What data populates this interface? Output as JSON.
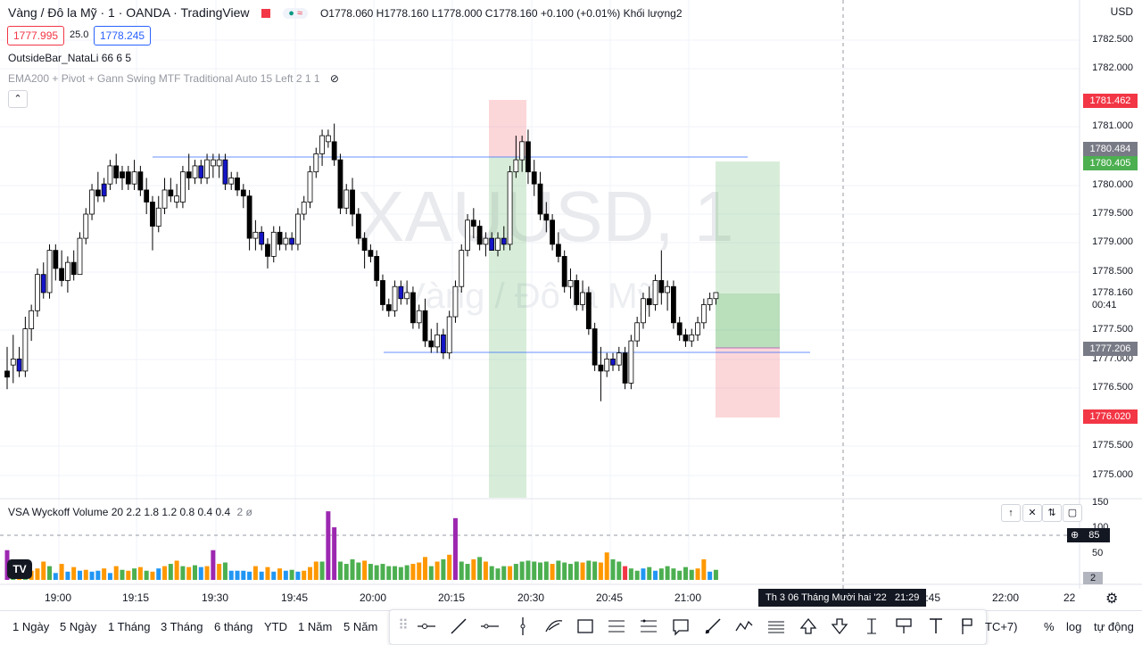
{
  "header": {
    "symbol_title": "Vàng / Đô la Mỹ · 1 · OANDA · TradingView",
    "ohlc": "O1778.060 H1778.160 L1778.000 C1778.160 +0.100 (+0.01%) Khối lượng2",
    "sell_price": "1777.995",
    "spread": "25.0",
    "buy_price": "1778.245",
    "currency": "USD"
  },
  "indicators": {
    "outside_bar": "OutsideBar_NataLi 66 6 5",
    "ema_pivot": "EMA200 + Pivot + Gann Swing MTF Traditional Auto 15 Left 2 1 1",
    "vsa": "VSA Wyckoff Volume 20 2.2 1.8 1.2 0.8 0.4 0.4",
    "vsa_extra": "2 ø"
  },
  "watermark": {
    "symbol": "XAUUSD, 1",
    "name": "Vàng / Đô la Mỹ"
  },
  "price_axis": {
    "ticks": [
      "1782.500",
      "1782.000",
      "1781.000",
      "1780.000",
      "1779.500",
      "1779.000",
      "1778.500",
      "1777.500",
      "1777.000",
      "1776.500",
      "1775.500",
      "1775.000"
    ],
    "tag_red_top": "1781.462",
    "tag_grey_top": "1780.484",
    "tag_green": "1780.405",
    "last_price": "1778.160",
    "countdown": "00:41",
    "tag_grey_low": "1777.206",
    "tag_red_low": "1776.020"
  },
  "volume_axis": {
    "ticks": [
      "150",
      "100",
      "50"
    ],
    "badge_85": "85",
    "badge_2": "2"
  },
  "time_axis": {
    "labels": [
      "19:00",
      "19:15",
      "19:30",
      "19:45",
      "20:00",
      "20:15",
      "20:30",
      "20:45",
      "21:00",
      "21:45",
      "22:00",
      "22"
    ],
    "crosshair_time": "Th 3 06 Tháng Mười hai '22   21:29"
  },
  "toolbar": {
    "ranges": [
      "1 Ngày",
      "5 Ngày",
      "1 Tháng",
      "3 Tháng",
      "6 tháng",
      "YTD",
      "1 Năm",
      "5 Năm"
    ],
    "timezone": "TC+7)",
    "percent": "%",
    "log": "log",
    "auto": "tự động"
  },
  "colors": {
    "up": "#ffffff",
    "down": "#000000",
    "down_blue": "#1515c8",
    "green_zone": "rgba(76,175,80,0.22)",
    "red_zone": "rgba(242,54,69,0.2)",
    "vol_green": "#4caf50",
    "vol_orange": "#ff9800",
    "vol_blue": "#2196f3",
    "vol_purple": "#9c27b0",
    "vol_red": "#f23645"
  },
  "chart_data": {
    "type": "candlestick",
    "xlabel_ticks": [
      "19:00",
      "19:15",
      "19:30",
      "19:45",
      "20:00",
      "20:15",
      "20:30",
      "20:45",
      "21:00"
    ],
    "ylim": [
      1774.8,
      1782.9
    ],
    "candles": [
      [
        1776.9,
        1777.3,
        1776.6,
        1776.8,
        "d"
      ],
      [
        1777.0,
        1777.5,
        1776.7,
        1777.1,
        "u"
      ],
      [
        1777.1,
        1777.3,
        1776.8,
        1776.9,
        "b"
      ],
      [
        1776.9,
        1777.8,
        1776.8,
        1777.6,
        "u"
      ],
      [
        1777.6,
        1778.0,
        1777.4,
        1777.9,
        "u"
      ],
      [
        1777.9,
        1778.6,
        1777.8,
        1778.5,
        "u"
      ],
      [
        1778.5,
        1778.7,
        1778.1,
        1778.2,
        "b"
      ],
      [
        1778.2,
        1779.0,
        1778.1,
        1778.9,
        "u"
      ],
      [
        1778.9,
        1779.0,
        1778.4,
        1778.6,
        "d"
      ],
      [
        1778.6,
        1778.9,
        1778.3,
        1778.4,
        "d"
      ],
      [
        1778.4,
        1778.8,
        1778.2,
        1778.7,
        "u"
      ],
      [
        1778.7,
        1778.9,
        1778.4,
        1778.5,
        "d"
      ],
      [
        1778.5,
        1779.2,
        1778.5,
        1779.1,
        "u"
      ],
      [
        1779.1,
        1779.6,
        1779.0,
        1779.5,
        "u"
      ],
      [
        1779.5,
        1780.0,
        1779.4,
        1779.9,
        "u"
      ],
      [
        1779.9,
        1780.2,
        1779.7,
        1779.8,
        "d"
      ],
      [
        1779.8,
        1780.1,
        1779.7,
        1780.0,
        "b"
      ],
      [
        1780.0,
        1780.4,
        1779.9,
        1780.3,
        "u"
      ],
      [
        1780.3,
        1780.5,
        1780.0,
        1780.1,
        "d"
      ],
      [
        1780.1,
        1780.3,
        1779.9,
        1780.2,
        "d"
      ],
      [
        1780.2,
        1780.3,
        1779.9,
        1780.0,
        "d"
      ],
      [
        1780.0,
        1780.4,
        1779.9,
        1780.2,
        "u"
      ],
      [
        1780.2,
        1780.3,
        1779.8,
        1779.9,
        "d"
      ],
      [
        1779.9,
        1780.1,
        1779.5,
        1779.7,
        "d"
      ],
      [
        1779.7,
        1779.8,
        1778.9,
        1779.3,
        "d"
      ],
      [
        1779.3,
        1779.8,
        1779.2,
        1779.6,
        "u"
      ],
      [
        1779.6,
        1780.1,
        1779.5,
        1779.9,
        "u"
      ],
      [
        1779.9,
        1780.1,
        1779.7,
        1779.8,
        "d"
      ],
      [
        1779.8,
        1780.0,
        1779.6,
        1779.7,
        "u"
      ],
      [
        1779.7,
        1780.3,
        1779.6,
        1780.2,
        "u"
      ],
      [
        1780.2,
        1780.5,
        1779.9,
        1780.1,
        "d"
      ],
      [
        1780.1,
        1780.4,
        1780.0,
        1780.3,
        "u"
      ],
      [
        1780.3,
        1780.4,
        1780.0,
        1780.1,
        "b"
      ],
      [
        1780.1,
        1780.5,
        1780.0,
        1780.4,
        "u"
      ],
      [
        1780.4,
        1780.5,
        1780.1,
        1780.3,
        "u"
      ],
      [
        1780.3,
        1780.5,
        1780.1,
        1780.4,
        "u"
      ],
      [
        1780.4,
        1780.5,
        1779.9,
        1780.0,
        "b"
      ],
      [
        1780.0,
        1780.2,
        1779.9,
        1780.1,
        "u"
      ],
      [
        1780.1,
        1780.2,
        1779.8,
        1779.9,
        "d"
      ],
      [
        1779.9,
        1780.0,
        1779.6,
        1779.8,
        "d"
      ],
      [
        1779.8,
        1779.9,
        1778.9,
        1779.1,
        "d"
      ],
      [
        1779.1,
        1779.4,
        1778.9,
        1779.2,
        "u"
      ],
      [
        1779.2,
        1779.3,
        1778.9,
        1779.0,
        "b"
      ],
      [
        1779.0,
        1779.1,
        1778.6,
        1778.8,
        "d"
      ],
      [
        1778.8,
        1779.3,
        1778.7,
        1779.2,
        "u"
      ],
      [
        1779.2,
        1779.3,
        1778.9,
        1779.0,
        "d"
      ],
      [
        1779.0,
        1779.2,
        1778.9,
        1779.1,
        "u"
      ],
      [
        1779.1,
        1779.2,
        1778.9,
        1779.0,
        "b"
      ],
      [
        1779.0,
        1779.6,
        1778.9,
        1779.5,
        "u"
      ],
      [
        1779.5,
        1779.8,
        1779.4,
        1779.7,
        "u"
      ],
      [
        1779.7,
        1780.3,
        1779.6,
        1780.2,
        "u"
      ],
      [
        1780.2,
        1780.6,
        1780.1,
        1780.5,
        "u"
      ],
      [
        1780.5,
        1780.9,
        1780.3,
        1780.8,
        "u"
      ],
      [
        1780.8,
        1780.9,
        1780.6,
        1780.7,
        "u"
      ],
      [
        1780.7,
        1781.0,
        1780.3,
        1780.4,
        "d"
      ],
      [
        1780.4,
        1780.5,
        1779.5,
        1779.6,
        "d"
      ],
      [
        1779.6,
        1780.0,
        1779.5,
        1779.9,
        "u"
      ],
      [
        1779.9,
        1780.1,
        1779.3,
        1779.5,
        "d"
      ],
      [
        1779.5,
        1779.6,
        1779.0,
        1779.1,
        "d"
      ],
      [
        1779.1,
        1779.2,
        1778.6,
        1778.9,
        "d"
      ],
      [
        1778.9,
        1779.0,
        1778.7,
        1778.8,
        "d"
      ],
      [
        1778.8,
        1778.9,
        1778.3,
        1778.4,
        "d"
      ],
      [
        1778.4,
        1778.5,
        1777.9,
        1778.0,
        "d"
      ],
      [
        1778.0,
        1778.1,
        1777.8,
        1777.9,
        "d"
      ],
      [
        1777.9,
        1778.4,
        1777.8,
        1778.3,
        "u"
      ],
      [
        1778.3,
        1778.4,
        1778.0,
        1778.1,
        "b"
      ],
      [
        1778.1,
        1778.4,
        1778.0,
        1778.2,
        "u"
      ],
      [
        1778.2,
        1778.3,
        1777.6,
        1777.7,
        "d"
      ],
      [
        1777.7,
        1778.0,
        1777.6,
        1777.9,
        "u"
      ],
      [
        1777.9,
        1778.1,
        1777.3,
        1777.4,
        "d"
      ],
      [
        1777.4,
        1777.6,
        1777.2,
        1777.3,
        "d"
      ],
      [
        1777.3,
        1777.7,
        1777.2,
        1777.5,
        "u"
      ],
      [
        1777.5,
        1777.6,
        1777.1,
        1777.2,
        "b"
      ],
      [
        1777.2,
        1777.9,
        1777.1,
        1777.8,
        "u"
      ],
      [
        1777.8,
        1778.4,
        1777.7,
        1778.3,
        "u"
      ],
      [
        1778.3,
        1779.0,
        1778.2,
        1778.9,
        "u"
      ],
      [
        1778.9,
        1779.5,
        1778.8,
        1779.4,
        "u"
      ],
      [
        1779.4,
        1779.6,
        1779.1,
        1779.3,
        "d"
      ],
      [
        1779.3,
        1779.4,
        1778.9,
        1779.0,
        "d"
      ],
      [
        1779.0,
        1779.2,
        1778.8,
        1779.1,
        "u"
      ],
      [
        1779.1,
        1779.2,
        1778.9,
        1778.9,
        "b"
      ],
      [
        1778.9,
        1779.2,
        1778.8,
        1779.1,
        "u"
      ],
      [
        1779.1,
        1779.3,
        1778.9,
        1779.0,
        "b"
      ],
      [
        1779.0,
        1780.3,
        1778.9,
        1780.2,
        "u"
      ],
      [
        1780.2,
        1780.8,
        1780.1,
        1780.4,
        "u"
      ],
      [
        1780.4,
        1780.8,
        1780.2,
        1780.7,
        "u"
      ],
      [
        1780.7,
        1780.9,
        1780.0,
        1780.2,
        "d"
      ],
      [
        1780.2,
        1780.4,
        1779.8,
        1780.0,
        "d"
      ],
      [
        1780.0,
        1780.2,
        1779.4,
        1779.5,
        "d"
      ],
      [
        1779.5,
        1779.7,
        1779.2,
        1779.4,
        "d"
      ],
      [
        1779.4,
        1779.5,
        1778.9,
        1779.0,
        "d"
      ],
      [
        1779.0,
        1779.2,
        1778.7,
        1778.8,
        "d"
      ],
      [
        1778.8,
        1778.9,
        1778.2,
        1778.3,
        "d"
      ],
      [
        1778.3,
        1778.6,
        1778.1,
        1778.4,
        "u"
      ],
      [
        1778.4,
        1778.5,
        1777.9,
        1778.0,
        "d"
      ],
      [
        1778.0,
        1778.4,
        1777.9,
        1778.2,
        "u"
      ],
      [
        1778.2,
        1778.3,
        1777.5,
        1777.6,
        "d"
      ],
      [
        1777.6,
        1777.7,
        1776.9,
        1777.0,
        "d"
      ],
      [
        1777.0,
        1777.3,
        1776.4,
        1776.9,
        "d"
      ],
      [
        1776.9,
        1777.2,
        1776.8,
        1777.1,
        "u"
      ],
      [
        1777.1,
        1777.2,
        1776.9,
        1777.0,
        "b"
      ],
      [
        1777.0,
        1777.3,
        1776.9,
        1777.2,
        "u"
      ],
      [
        1777.2,
        1777.3,
        1776.6,
        1776.7,
        "d"
      ],
      [
        1776.7,
        1777.5,
        1776.6,
        1777.4,
        "u"
      ],
      [
        1777.4,
        1777.8,
        1777.3,
        1777.7,
        "u"
      ],
      [
        1777.7,
        1778.2,
        1777.6,
        1778.1,
        "u"
      ],
      [
        1778.1,
        1778.3,
        1777.8,
        1778.0,
        "d"
      ],
      [
        1778.0,
        1778.5,
        1777.9,
        1778.4,
        "u"
      ],
      [
        1778.4,
        1778.9,
        1778.0,
        1778.2,
        "d"
      ],
      [
        1778.2,
        1778.4,
        1777.9,
        1778.3,
        "u"
      ],
      [
        1778.3,
        1778.4,
        1777.6,
        1777.7,
        "d"
      ],
      [
        1777.7,
        1777.8,
        1777.4,
        1777.5,
        "d"
      ],
      [
        1777.5,
        1777.6,
        1777.3,
        1777.4,
        "d"
      ],
      [
        1777.4,
        1777.6,
        1777.3,
        1777.5,
        "u"
      ],
      [
        1777.5,
        1777.8,
        1777.4,
        1777.7,
        "u"
      ],
      [
        1777.7,
        1778.1,
        1777.6,
        1778.0,
        "u"
      ],
      [
        1778.0,
        1778.2,
        1777.9,
        1778.1,
        "u"
      ],
      [
        1778.1,
        1778.2,
        1778.0,
        1778.2,
        "u"
      ]
    ],
    "volume_ylim": [
      0,
      160
    ],
    "volumes": [
      [
        65,
        "p"
      ],
      [
        30,
        "g"
      ],
      [
        20,
        "o"
      ],
      [
        18,
        "g"
      ],
      [
        20,
        "o"
      ],
      [
        25,
        "o"
      ],
      [
        40,
        "o"
      ],
      [
        30,
        "g"
      ],
      [
        15,
        "b"
      ],
      [
        35,
        "o"
      ],
      [
        18,
        "b"
      ],
      [
        28,
        "o"
      ],
      [
        20,
        "b"
      ],
      [
        22,
        "o"
      ],
      [
        18,
        "b"
      ],
      [
        20,
        "b"
      ],
      [
        25,
        "o"
      ],
      [
        15,
        "b"
      ],
      [
        30,
        "o"
      ],
      [
        22,
        "g"
      ],
      [
        20,
        "o"
      ],
      [
        25,
        "g"
      ],
      [
        28,
        "o"
      ],
      [
        20,
        "g"
      ],
      [
        18,
        "o"
      ],
      [
        25,
        "b"
      ],
      [
        30,
        "o"
      ],
      [
        35,
        "g"
      ],
      [
        42,
        "o"
      ],
      [
        30,
        "g"
      ],
      [
        28,
        "o"
      ],
      [
        32,
        "g"
      ],
      [
        28,
        "b"
      ],
      [
        30,
        "o"
      ],
      [
        65,
        "p"
      ],
      [
        35,
        "o"
      ],
      [
        38,
        "g"
      ],
      [
        20,
        "b"
      ],
      [
        20,
        "b"
      ],
      [
        20,
        "b"
      ],
      [
        18,
        "b"
      ],
      [
        30,
        "o"
      ],
      [
        18,
        "b"
      ],
      [
        28,
        "o"
      ],
      [
        18,
        "b"
      ],
      [
        25,
        "o"
      ],
      [
        20,
        "b"
      ],
      [
        22,
        "g"
      ],
      [
        18,
        "b"
      ],
      [
        20,
        "o"
      ],
      [
        28,
        "o"
      ],
      [
        40,
        "o"
      ],
      [
        40,
        "g"
      ],
      [
        150,
        "p"
      ],
      [
        115,
        "p"
      ],
      [
        40,
        "g"
      ],
      [
        35,
        "g"
      ],
      [
        45,
        "g"
      ],
      [
        38,
        "g"
      ],
      [
        42,
        "o"
      ],
      [
        35,
        "g"
      ],
      [
        32,
        "g"
      ],
      [
        35,
        "g"
      ],
      [
        30,
        "g"
      ],
      [
        30,
        "g"
      ],
      [
        28,
        "g"
      ],
      [
        32,
        "g"
      ],
      [
        35,
        "o"
      ],
      [
        38,
        "o"
      ],
      [
        50,
        "o"
      ],
      [
        30,
        "g"
      ],
      [
        40,
        "o"
      ],
      [
        45,
        "g"
      ],
      [
        55,
        "o"
      ],
      [
        135,
        "p"
      ],
      [
        40,
        "g"
      ],
      [
        35,
        "g"
      ],
      [
        45,
        "o"
      ],
      [
        50,
        "g"
      ],
      [
        40,
        "o"
      ],
      [
        30,
        "g"
      ],
      [
        25,
        "g"
      ],
      [
        30,
        "g"
      ],
      [
        30,
        "o"
      ],
      [
        35,
        "g"
      ],
      [
        40,
        "g"
      ],
      [
        42,
        "g"
      ],
      [
        40,
        "g"
      ],
      [
        38,
        "g"
      ],
      [
        40,
        "g"
      ],
      [
        35,
        "o"
      ],
      [
        42,
        "g"
      ],
      [
        38,
        "g"
      ],
      [
        35,
        "g"
      ],
      [
        40,
        "g"
      ],
      [
        38,
        "o"
      ],
      [
        42,
        "g"
      ],
      [
        40,
        "g"
      ],
      [
        38,
        "o"
      ],
      [
        60,
        "o"
      ],
      [
        45,
        "g"
      ],
      [
        40,
        "g"
      ],
      [
        30,
        "r"
      ],
      [
        25,
        "g"
      ],
      [
        20,
        "g"
      ],
      [
        25,
        "b"
      ],
      [
        28,
        "g"
      ],
      [
        20,
        "b"
      ],
      [
        25,
        "g"
      ],
      [
        30,
        "g"
      ],
      [
        25,
        "g"
      ],
      [
        20,
        "g"
      ],
      [
        28,
        "g"
      ],
      [
        22,
        "g"
      ],
      [
        25,
        "o"
      ],
      [
        45,
        "o"
      ],
      [
        18,
        "b"
      ],
      [
        22,
        "g"
      ]
    ]
  }
}
